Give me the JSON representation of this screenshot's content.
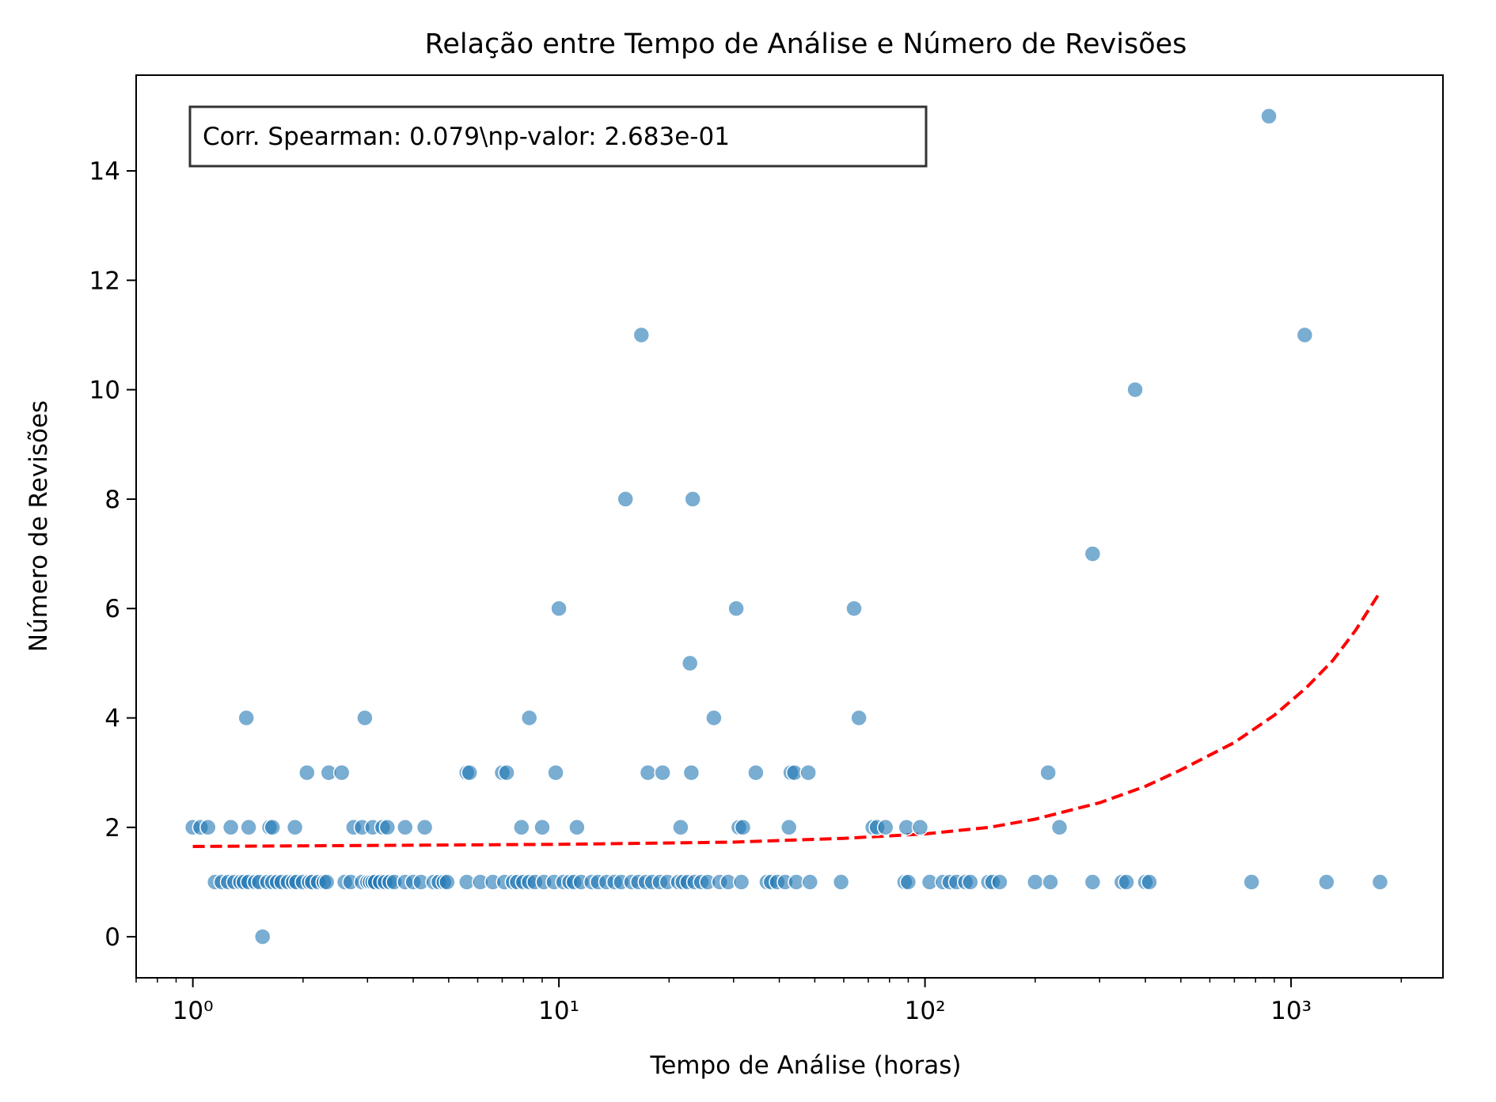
{
  "chart_data": {
    "type": "scatter",
    "title": "Relação entre Tempo de Análise e Número de Revisões",
    "xlabel": "Tempo de Análise (horas)",
    "ylabel": "Número de Revisões",
    "xscale": "log",
    "xlim": [
      0.7,
      2600
    ],
    "ylim": [
      -0.75,
      15.75
    ],
    "x_ticks": [
      {
        "value": 1,
        "label": "10⁰"
      },
      {
        "value": 10,
        "label": "10¹"
      },
      {
        "value": 100,
        "label": "10²"
      },
      {
        "value": 1000,
        "label": "10³"
      }
    ],
    "y_ticks": [
      0,
      2,
      4,
      6,
      8,
      10,
      12,
      14
    ],
    "annotation": "Corr. Spearman: 0.079\\np-valor: 2.683e-01",
    "grid": false,
    "point_color": "#1f77b4",
    "trend_color": "#ff0000",
    "points": [
      {
        "x": 1.0,
        "y": 2
      },
      {
        "x": 1.05,
        "y": 2
      },
      {
        "x": 1.1,
        "y": 2
      },
      {
        "x": 1.27,
        "y": 2
      },
      {
        "x": 1.42,
        "y": 2
      },
      {
        "x": 1.62,
        "y": 2
      },
      {
        "x": 1.65,
        "y": 2
      },
      {
        "x": 1.9,
        "y": 2
      },
      {
        "x": 2.75,
        "y": 2
      },
      {
        "x": 2.9,
        "y": 2
      },
      {
        "x": 3.1,
        "y": 2
      },
      {
        "x": 3.3,
        "y": 2
      },
      {
        "x": 3.4,
        "y": 2
      },
      {
        "x": 3.8,
        "y": 2
      },
      {
        "x": 4.3,
        "y": 2
      },
      {
        "x": 7.9,
        "y": 2
      },
      {
        "x": 9.0,
        "y": 2
      },
      {
        "x": 11.2,
        "y": 2
      },
      {
        "x": 21.5,
        "y": 2
      },
      {
        "x": 31.0,
        "y": 2
      },
      {
        "x": 31.8,
        "y": 2
      },
      {
        "x": 42.5,
        "y": 2
      },
      {
        "x": 72.0,
        "y": 2
      },
      {
        "x": 74.0,
        "y": 2
      },
      {
        "x": 78.0,
        "y": 2
      },
      {
        "x": 89.0,
        "y": 2
      },
      {
        "x": 97.0,
        "y": 2
      },
      {
        "x": 233.0,
        "y": 2
      },
      {
        "x": 1.4,
        "y": 4
      },
      {
        "x": 2.95,
        "y": 4
      },
      {
        "x": 8.3,
        "y": 4
      },
      {
        "x": 26.5,
        "y": 4
      },
      {
        "x": 66.0,
        "y": 4
      },
      {
        "x": 2.05,
        "y": 3
      },
      {
        "x": 2.35,
        "y": 3
      },
      {
        "x": 2.55,
        "y": 3
      },
      {
        "x": 5.6,
        "y": 3
      },
      {
        "x": 5.7,
        "y": 3
      },
      {
        "x": 7.0,
        "y": 3
      },
      {
        "x": 7.2,
        "y": 3
      },
      {
        "x": 9.8,
        "y": 3
      },
      {
        "x": 17.5,
        "y": 3
      },
      {
        "x": 19.2,
        "y": 3
      },
      {
        "x": 23.0,
        "y": 3
      },
      {
        "x": 34.5,
        "y": 3
      },
      {
        "x": 43.0,
        "y": 3
      },
      {
        "x": 44.0,
        "y": 3
      },
      {
        "x": 48.0,
        "y": 3
      },
      {
        "x": 217.0,
        "y": 3
      },
      {
        "x": 1.55,
        "y": 0
      },
      {
        "x": 10.0,
        "y": 6
      },
      {
        "x": 30.5,
        "y": 6
      },
      {
        "x": 64.0,
        "y": 6
      },
      {
        "x": 22.8,
        "y": 5
      },
      {
        "x": 287.0,
        "y": 7
      },
      {
        "x": 15.2,
        "y": 8
      },
      {
        "x": 23.2,
        "y": 8
      },
      {
        "x": 16.8,
        "y": 11
      },
      {
        "x": 1090.0,
        "y": 11
      },
      {
        "x": 375.0,
        "y": 10
      },
      {
        "x": 870.0,
        "y": 15
      },
      {
        "x": 1.15,
        "y": 1
      },
      {
        "x": 1.2,
        "y": 1
      },
      {
        "x": 1.25,
        "y": 1
      },
      {
        "x": 1.3,
        "y": 1
      },
      {
        "x": 1.35,
        "y": 1
      },
      {
        "x": 1.38,
        "y": 1
      },
      {
        "x": 1.42,
        "y": 1
      },
      {
        "x": 1.48,
        "y": 1
      },
      {
        "x": 1.52,
        "y": 1
      },
      {
        "x": 1.6,
        "y": 1
      },
      {
        "x": 1.65,
        "y": 1
      },
      {
        "x": 1.7,
        "y": 1
      },
      {
        "x": 1.75,
        "y": 1
      },
      {
        "x": 1.82,
        "y": 1
      },
      {
        "x": 1.88,
        "y": 1
      },
      {
        "x": 1.92,
        "y": 1
      },
      {
        "x": 2.0,
        "y": 1
      },
      {
        "x": 2.08,
        "y": 1
      },
      {
        "x": 2.12,
        "y": 1
      },
      {
        "x": 2.2,
        "y": 1
      },
      {
        "x": 2.28,
        "y": 1
      },
      {
        "x": 2.32,
        "y": 1
      },
      {
        "x": 2.6,
        "y": 1
      },
      {
        "x": 2.7,
        "y": 1
      },
      {
        "x": 2.9,
        "y": 1
      },
      {
        "x": 3.0,
        "y": 1
      },
      {
        "x": 3.05,
        "y": 1
      },
      {
        "x": 3.1,
        "y": 1
      },
      {
        "x": 3.15,
        "y": 1
      },
      {
        "x": 3.25,
        "y": 1
      },
      {
        "x": 3.35,
        "y": 1
      },
      {
        "x": 3.45,
        "y": 1
      },
      {
        "x": 3.55,
        "y": 1
      },
      {
        "x": 3.8,
        "y": 1
      },
      {
        "x": 4.0,
        "y": 1
      },
      {
        "x": 4.2,
        "y": 1
      },
      {
        "x": 4.55,
        "y": 1
      },
      {
        "x": 4.7,
        "y": 1
      },
      {
        "x": 4.85,
        "y": 1
      },
      {
        "x": 4.95,
        "y": 1
      },
      {
        "x": 5.6,
        "y": 1
      },
      {
        "x": 6.1,
        "y": 1
      },
      {
        "x": 6.6,
        "y": 1
      },
      {
        "x": 7.1,
        "y": 1
      },
      {
        "x": 7.5,
        "y": 1
      },
      {
        "x": 7.7,
        "y": 1
      },
      {
        "x": 8.0,
        "y": 1
      },
      {
        "x": 8.3,
        "y": 1
      },
      {
        "x": 8.6,
        "y": 1
      },
      {
        "x": 9.1,
        "y": 1
      },
      {
        "x": 9.7,
        "y": 1
      },
      {
        "x": 10.3,
        "y": 1
      },
      {
        "x": 10.7,
        "y": 1
      },
      {
        "x": 11.0,
        "y": 1
      },
      {
        "x": 11.5,
        "y": 1
      },
      {
        "x": 12.3,
        "y": 1
      },
      {
        "x": 12.8,
        "y": 1
      },
      {
        "x": 13.5,
        "y": 1
      },
      {
        "x": 14.2,
        "y": 1
      },
      {
        "x": 14.8,
        "y": 1
      },
      {
        "x": 15.8,
        "y": 1
      },
      {
        "x": 16.5,
        "y": 1
      },
      {
        "x": 17.3,
        "y": 1
      },
      {
        "x": 18.0,
        "y": 1
      },
      {
        "x": 18.9,
        "y": 1
      },
      {
        "x": 19.8,
        "y": 1
      },
      {
        "x": 21.2,
        "y": 1
      },
      {
        "x": 21.8,
        "y": 1
      },
      {
        "x": 22.5,
        "y": 1
      },
      {
        "x": 23.5,
        "y": 1
      },
      {
        "x": 24.5,
        "y": 1
      },
      {
        "x": 25.5,
        "y": 1
      },
      {
        "x": 27.5,
        "y": 1
      },
      {
        "x": 29.0,
        "y": 1
      },
      {
        "x": 31.5,
        "y": 1
      },
      {
        "x": 37.0,
        "y": 1
      },
      {
        "x": 38.0,
        "y": 1
      },
      {
        "x": 39.5,
        "y": 1
      },
      {
        "x": 41.5,
        "y": 1
      },
      {
        "x": 44.5,
        "y": 1
      },
      {
        "x": 48.5,
        "y": 1
      },
      {
        "x": 59.0,
        "y": 1
      },
      {
        "x": 88.0,
        "y": 1
      },
      {
        "x": 90.0,
        "y": 1
      },
      {
        "x": 103.0,
        "y": 1
      },
      {
        "x": 112.0,
        "y": 1
      },
      {
        "x": 117.0,
        "y": 1
      },
      {
        "x": 122.0,
        "y": 1
      },
      {
        "x": 129.0,
        "y": 1
      },
      {
        "x": 133.0,
        "y": 1
      },
      {
        "x": 149.0,
        "y": 1
      },
      {
        "x": 153.0,
        "y": 1
      },
      {
        "x": 160.0,
        "y": 1
      },
      {
        "x": 200.0,
        "y": 1
      },
      {
        "x": 220.0,
        "y": 1
      },
      {
        "x": 287.0,
        "y": 1
      },
      {
        "x": 345.0,
        "y": 1
      },
      {
        "x": 355.0,
        "y": 1
      },
      {
        "x": 400.0,
        "y": 1
      },
      {
        "x": 410.0,
        "y": 1
      },
      {
        "x": 780.0,
        "y": 1
      },
      {
        "x": 1250.0,
        "y": 1
      },
      {
        "x": 1750.0,
        "y": 1
      }
    ],
    "trend": [
      {
        "x": 1.0,
        "y": 1.65
      },
      {
        "x": 3.0,
        "y": 1.67
      },
      {
        "x": 10.0,
        "y": 1.69
      },
      {
        "x": 30.0,
        "y": 1.73
      },
      {
        "x": 60.0,
        "y": 1.8
      },
      {
        "x": 100.0,
        "y": 1.88
      },
      {
        "x": 150.0,
        "y": 2.0
      },
      {
        "x": 200.0,
        "y": 2.15
      },
      {
        "x": 300.0,
        "y": 2.45
      },
      {
        "x": 400.0,
        "y": 2.75
      },
      {
        "x": 500.0,
        "y": 3.05
      },
      {
        "x": 700.0,
        "y": 3.55
      },
      {
        "x": 900.0,
        "y": 4.05
      },
      {
        "x": 1100.0,
        "y": 4.55
      },
      {
        "x": 1300.0,
        "y": 5.05
      },
      {
        "x": 1500.0,
        "y": 5.6
      },
      {
        "x": 1750.0,
        "y": 6.3
      }
    ]
  }
}
